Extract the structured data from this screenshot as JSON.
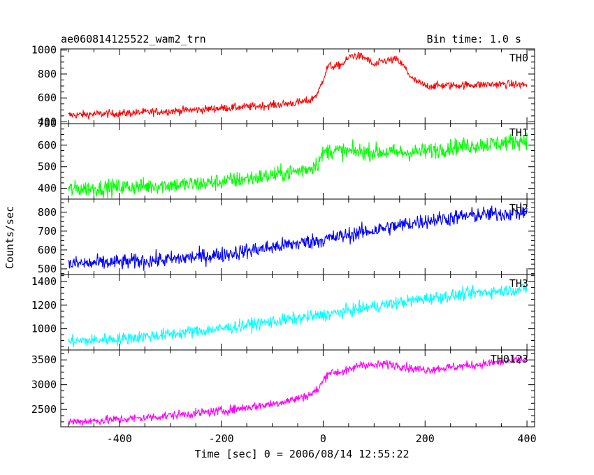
{
  "chart_data": {
    "type": "line",
    "title": "ae060814125522_wam2_trn",
    "subtitle": "Bin time: 1.0 s",
    "xlabel": "Time [sec] 0 = 2006/08/14 12:55:22",
    "ylabel": "Counts/sec",
    "xlim": [
      -515,
      415
    ],
    "xticks": [
      -400,
      -200,
      0,
      200,
      400
    ],
    "grid": false,
    "panels": [
      {
        "name": "TH0",
        "color": "#ff0000",
        "ylim": [
          385,
          1010
        ],
        "yticks": [
          400,
          600,
          800,
          1000
        ],
        "x": [
          -500,
          -450,
          -400,
          -350,
          -300,
          -250,
          -200,
          -150,
          -100,
          -50,
          -25,
          -10,
          0,
          10,
          25,
          40,
          55,
          70,
          85,
          100,
          115,
          130,
          145,
          160,
          175,
          200,
          250,
          300,
          350,
          400
        ],
        "values": [
          455,
          465,
          470,
          480,
          490,
          500,
          515,
          525,
          540,
          560,
          580,
          640,
          760,
          870,
          860,
          890,
          955,
          950,
          930,
          870,
          905,
          915,
          920,
          855,
          755,
          700,
          705,
          710,
          715,
          710
        ],
        "noise": 24
      },
      {
        "name": "TH1",
        "color": "#00ff00",
        "ylim": [
          350,
          700
        ],
        "yticks": [
          400,
          500,
          600,
          700
        ],
        "x": [
          -500,
          -450,
          -400,
          -350,
          -300,
          -250,
          -200,
          -150,
          -100,
          -50,
          -25,
          -10,
          0,
          10,
          25,
          50,
          100,
          150,
          200,
          250,
          300,
          350,
          400
        ],
        "values": [
          395,
          400,
          405,
          410,
          415,
          420,
          430,
          445,
          460,
          480,
          495,
          520,
          560,
          575,
          575,
          570,
          570,
          565,
          570,
          590,
          600,
          610,
          625
        ],
        "noise": 28
      },
      {
        "name": "TH2",
        "color": "#0000ff",
        "ylim": [
          470,
          870
        ],
        "yticks": [
          500,
          600,
          700,
          800
        ],
        "x": [
          -500,
          -400,
          -300,
          -200,
          -100,
          0,
          100,
          200,
          300,
          400
        ],
        "values": [
          525,
          535,
          550,
          575,
          615,
          655,
          705,
          755,
          785,
          800
        ],
        "noise": 30
      },
      {
        "name": "TH3",
        "color": "#00ffff",
        "ylim": [
          820,
          1460
        ],
        "yticks": [
          1000,
          1200,
          1400
        ],
        "x": [
          -500,
          -400,
          -300,
          -200,
          -100,
          0,
          100,
          200,
          300,
          400
        ],
        "values": [
          890,
          915,
          955,
          1000,
          1060,
          1115,
          1190,
          1255,
          1305,
          1340
        ],
        "noise": 38
      },
      {
        "name": "TH0123",
        "color": "#ff00ff",
        "ylim": [
          2150,
          3700
        ],
        "yticks": [
          2500,
          3000,
          3500
        ],
        "x": [
          -500,
          -450,
          -400,
          -350,
          -300,
          -250,
          -200,
          -150,
          -100,
          -50,
          -25,
          -10,
          0,
          10,
          25,
          50,
          75,
          100,
          125,
          150,
          175,
          200,
          250,
          300,
          350,
          400
        ],
        "values": [
          2250,
          2270,
          2300,
          2330,
          2380,
          2420,
          2470,
          2540,
          2610,
          2720,
          2800,
          2900,
          3080,
          3250,
          3250,
          3280,
          3420,
          3380,
          3420,
          3390,
          3320,
          3300,
          3350,
          3400,
          3460,
          3510
        ],
        "noise": 65
      }
    ]
  }
}
